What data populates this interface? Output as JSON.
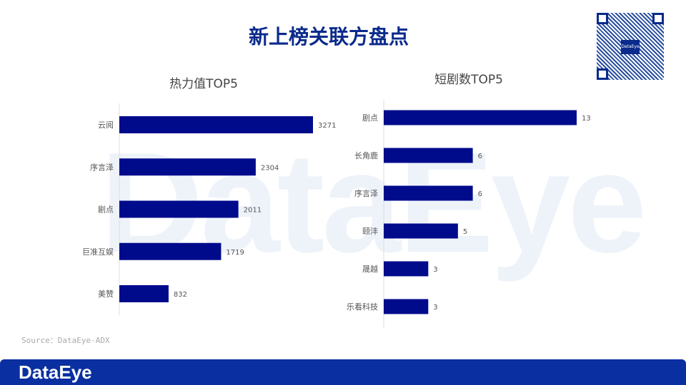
{
  "title": "新上榜关联方盘点",
  "watermark": "DataEye",
  "qr_center": "DataEye",
  "source": "Source：DataEye-ADX",
  "footer_logo": "DataEye",
  "colors": {
    "bar": "#000b8c",
    "title": "#0a2a8c",
    "footer": "#0a2fa0"
  },
  "chart_data": [
    {
      "type": "bar",
      "orientation": "horizontal",
      "title": "热力值TOP5",
      "categories": [
        "云阅",
        "序言泽",
        "剧点",
        "巨准互娱",
        "美赞"
      ],
      "values": [
        3271,
        2304,
        2011,
        1719,
        832
      ],
      "xlim": [
        0,
        3271
      ]
    },
    {
      "type": "bar",
      "orientation": "horizontal",
      "title": "短剧数TOP5",
      "categories": [
        "剧点",
        "长角鹿",
        "序言泽",
        "颐沣",
        "晟越",
        "乐看科技"
      ],
      "values": [
        13,
        6,
        6,
        5,
        3,
        3
      ],
      "xlim": [
        0,
        13
      ]
    }
  ]
}
